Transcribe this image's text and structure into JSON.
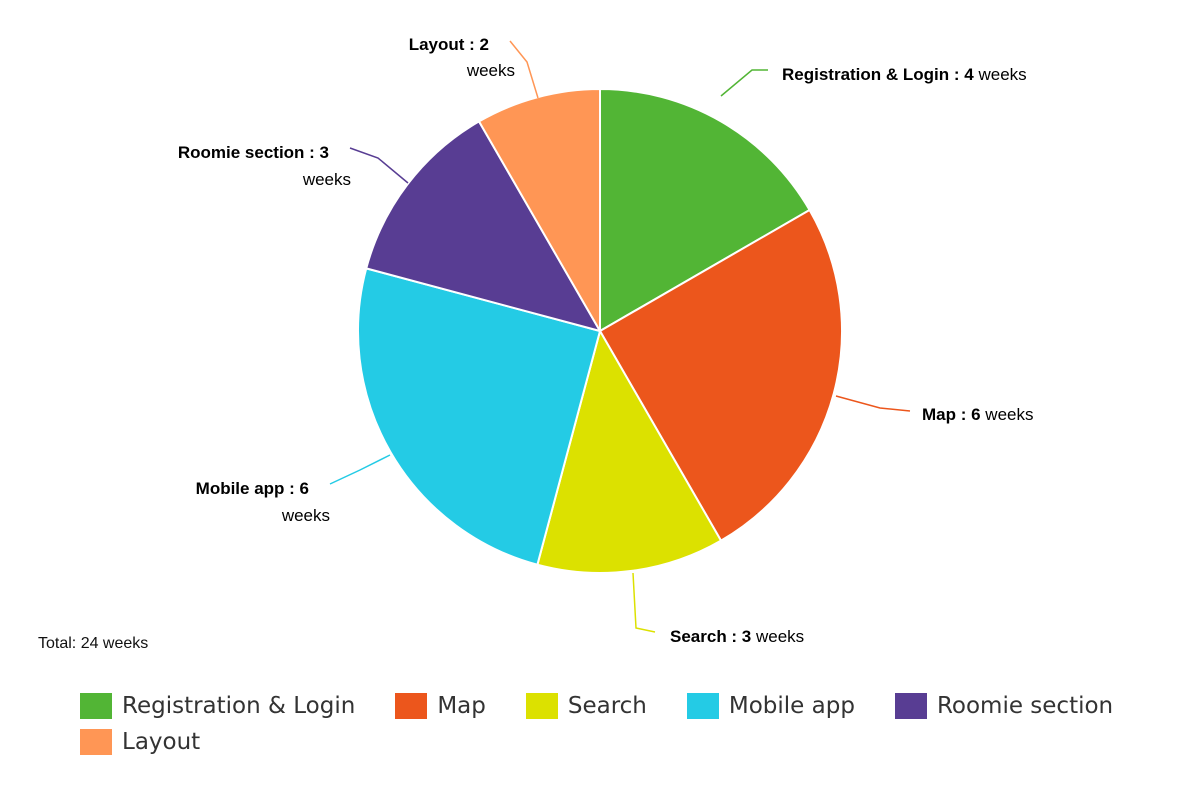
{
  "chart_data": {
    "type": "pie",
    "unit": "weeks",
    "slices": [
      {
        "label": "Registration & Login",
        "value": 4,
        "color": "#52b535"
      },
      {
        "label": "Map",
        "value": 6,
        "color": "#ec561c"
      },
      {
        "label": "Search",
        "value": 3,
        "color": "#dce100"
      },
      {
        "label": "Mobile app",
        "value": 6,
        "color": "#24cbe5"
      },
      {
        "label": "Roomie section",
        "value": 3,
        "color": "#583d93"
      },
      {
        "label": "Layout",
        "value": 2,
        "color": "#ff9655"
      }
    ],
    "total_label": "Total: 24 weeks",
    "legend": "bottom"
  }
}
